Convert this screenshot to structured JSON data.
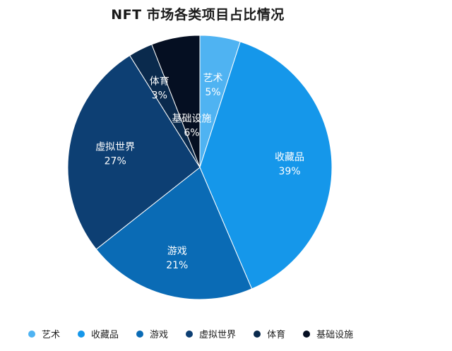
{
  "chart_data": {
    "type": "pie",
    "title": "NFT 市场各类项目占比情况",
    "slices": [
      {
        "label": "艺术",
        "value": 5,
        "pct_text": "5%",
        "color": "#4fb3f2"
      },
      {
        "label": "收藏品",
        "value": 39,
        "pct_text": "39%",
        "color": "#1597ea"
      },
      {
        "label": "游戏",
        "value": 21,
        "pct_text": "21%",
        "color": "#0a6bb5"
      },
      {
        "label": "虚拟世界",
        "value": 27,
        "pct_text": "27%",
        "color": "#0d3f73"
      },
      {
        "label": "体育",
        "value": 3,
        "pct_text": "3%",
        "color": "#0a2a4d"
      },
      {
        "label": "基础设施",
        "value": 6,
        "pct_text": "6%",
        "color": "#050f22"
      }
    ],
    "start_angle": "12 o'clock",
    "direction": "clockwise",
    "legend_position": "bottom"
  }
}
